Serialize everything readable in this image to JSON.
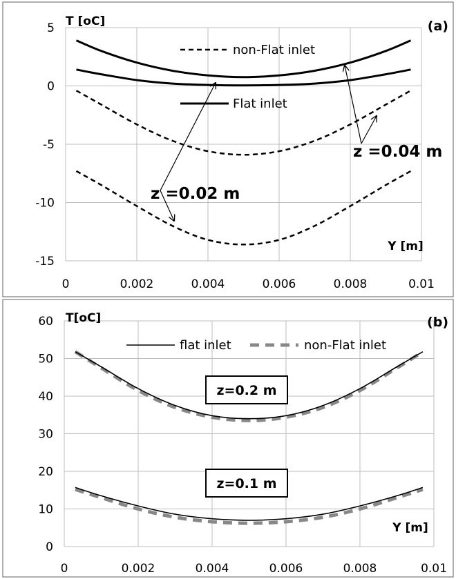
{
  "chart_data": [
    {
      "type": "line",
      "panel_label": "(a)",
      "xlabel": "Y [m]",
      "ylabel": "T [oC]",
      "xlim": [
        0,
        0.01
      ],
      "ylim": [
        -15,
        5
      ],
      "x_ticks": [
        "0",
        "0.002",
        "0.004",
        "0.006",
        "0.008",
        "0.01"
      ],
      "y_ticks": [
        "-15",
        "-10",
        "-5",
        "0",
        "5"
      ],
      "grid": true,
      "legend": [
        {
          "label": "non-Flat inlet",
          "style": "dashed"
        },
        {
          "label": "Flat inlet",
          "style": "solid"
        }
      ],
      "annotations": [
        "z =0.02 m",
        "z =0.04 m"
      ],
      "series": [
        {
          "name": "Flat inlet",
          "z": "0.04 m",
          "style": "solid",
          "x": [
            0.0003,
            0.001,
            0.002,
            0.003,
            0.004,
            0.005,
            0.006,
            0.007,
            0.008,
            0.009,
            0.0097
          ],
          "y": [
            3.9,
            3.0,
            2.0,
            1.3,
            0.9,
            0.75,
            0.9,
            1.3,
            2.0,
            3.0,
            3.9
          ]
        },
        {
          "name": "Flat inlet",
          "z": "0.02 m",
          "style": "solid",
          "x": [
            0.0003,
            0.001,
            0.002,
            0.003,
            0.004,
            0.005,
            0.006,
            0.007,
            0.008,
            0.009,
            0.0097
          ],
          "y": [
            1.4,
            1.0,
            0.5,
            0.2,
            0.08,
            0.05,
            0.08,
            0.2,
            0.5,
            1.0,
            1.4
          ]
        },
        {
          "name": "non-Flat inlet",
          "z": "0.04 m",
          "style": "dashed",
          "x": [
            0.0003,
            0.001,
            0.002,
            0.003,
            0.004,
            0.005,
            0.006,
            0.007,
            0.008,
            0.009,
            0.0097
          ],
          "y": [
            -0.4,
            -1.6,
            -3.3,
            -4.7,
            -5.6,
            -5.9,
            -5.6,
            -4.7,
            -3.3,
            -1.6,
            -0.4
          ]
        },
        {
          "name": "non-Flat inlet",
          "z": "0.02 m",
          "style": "dashed",
          "x": [
            0.0003,
            0.001,
            0.002,
            0.003,
            0.004,
            0.005,
            0.006,
            0.007,
            0.008,
            0.009,
            0.0097
          ],
          "y": [
            -7.3,
            -8.5,
            -10.3,
            -12.0,
            -13.2,
            -13.6,
            -13.2,
            -12.0,
            -10.3,
            -8.5,
            -7.3
          ]
        }
      ]
    },
    {
      "type": "line",
      "panel_label": "(b)",
      "xlabel": "Y [m]",
      "ylabel": "T[oC]",
      "xlim": [
        0,
        0.01
      ],
      "ylim": [
        0,
        60
      ],
      "x_ticks": [
        "0",
        "0.002",
        "0.004",
        "0.006",
        "0.008",
        "0.01"
      ],
      "y_ticks": [
        "0",
        "10",
        "20",
        "30",
        "40",
        "50",
        "60"
      ],
      "grid": true,
      "legend": [
        {
          "label": "flat inlet",
          "style": "solid-thin"
        },
        {
          "label": "non-Flat inlet",
          "style": "dashed-gray"
        }
      ],
      "annotations": [
        "z=0.2 m",
        "z=0.1 m"
      ],
      "series": [
        {
          "name": "non-Flat inlet",
          "z": "0.2 m",
          "style": "dashed-gray",
          "x": [
            0.0003,
            0.001,
            0.002,
            0.003,
            0.004,
            0.005,
            0.006,
            0.007,
            0.008,
            0.009,
            0.0097
          ],
          "y": [
            51.8,
            47.5,
            41.5,
            37.0,
            34.4,
            33.5,
            34.4,
            37.0,
            41.5,
            47.5,
            51.8
          ]
        },
        {
          "name": "flat inlet",
          "z": "0.2 m",
          "style": "solid-thin",
          "x": [
            0.0003,
            0.001,
            0.002,
            0.003,
            0.004,
            0.005,
            0.006,
            0.007,
            0.008,
            0.009,
            0.0097
          ],
          "y": [
            51.8,
            47.8,
            42.0,
            37.5,
            34.8,
            34.0,
            34.8,
            37.5,
            42.0,
            47.8,
            51.8
          ]
        },
        {
          "name": "non-Flat inlet",
          "z": "0.1 m",
          "style": "dashed-gray",
          "x": [
            0.0003,
            0.001,
            0.002,
            0.003,
            0.004,
            0.005,
            0.006,
            0.007,
            0.008,
            0.009,
            0.0097
          ],
          "y": [
            15.2,
            13.0,
            10.0,
            7.8,
            6.6,
            6.2,
            6.6,
            7.8,
            10.0,
            13.0,
            15.2
          ]
        },
        {
          "name": "flat inlet",
          "z": "0.1 m",
          "style": "solid-thin",
          "x": [
            0.0003,
            0.001,
            0.002,
            0.003,
            0.004,
            0.005,
            0.006,
            0.007,
            0.008,
            0.009,
            0.0097
          ],
          "y": [
            15.7,
            13.5,
            10.8,
            8.6,
            7.4,
            7.0,
            7.4,
            8.6,
            10.8,
            13.5,
            15.7
          ]
        }
      ]
    }
  ],
  "colors": {
    "grid": "#bdbdbd",
    "line_black": "#000000",
    "line_gray": "#888888",
    "frame": "#7a7a7a"
  }
}
